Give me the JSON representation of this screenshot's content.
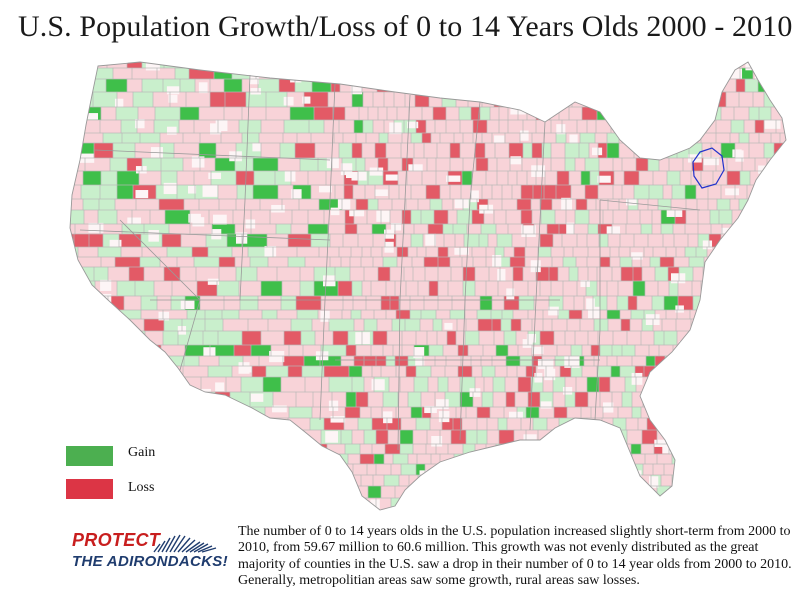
{
  "title": "U.S. Population Growth/Loss of 0 to 14 Years Olds 2000 - 2010",
  "legend": [
    {
      "label": "Gain",
      "color": "#4caf50"
    },
    {
      "label": "Loss",
      "color": "#dc3545"
    }
  ],
  "colors": {
    "gain_strong": "#3fbf4a",
    "gain_light": "#c9efcc",
    "loss_strong": "#e35a66",
    "loss_light": "#f8d3d8",
    "county_border": "#b8b8b8",
    "adirondack_outline": "#2233cc"
  },
  "description": "The number of 0 to 14 years olds in the U.S. population increased slightly short-term from 2000 to 2010, from 59.67 million to 60.6 million. This growth was not evenly distributed as the great majority of counties in the U.S. saw a drop in their number of 0 to 14 year olds from 2000 to 2010. Generally, metropolitian areas saw some growth, rural areas saw losses.",
  "logo": {
    "line1": "PROTECT",
    "line2": "THE ADIRONDACKS!",
    "icon": "mountains-icon"
  }
}
